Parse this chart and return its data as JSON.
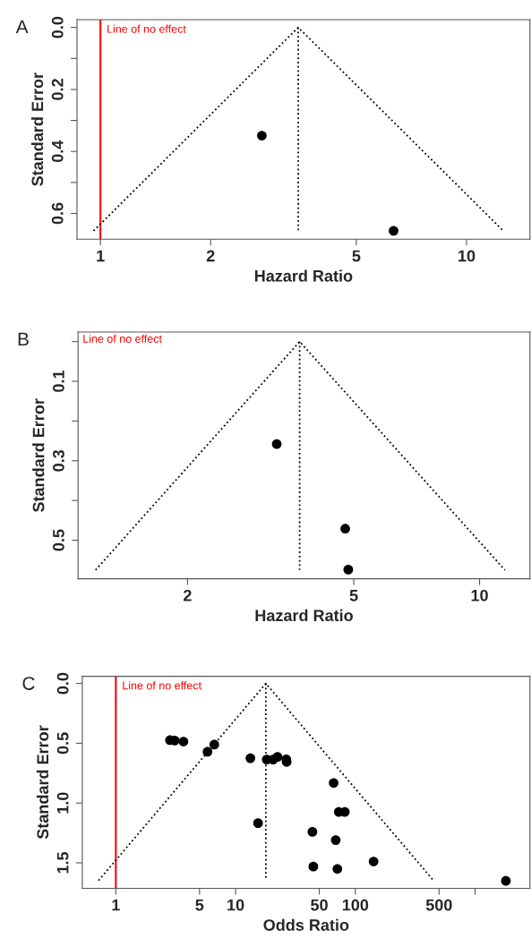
{
  "chart_data": [
    {
      "type": "scatter",
      "title": "A",
      "xlabel": "Hazard Ratio",
      "ylabel": "Standard Error",
      "log": "x",
      "xlim": [
        0.863,
        14.9
      ],
      "xticks": [
        1,
        2,
        5,
        10
      ],
      "ylim": [
        0.683,
        -0.025
      ],
      "yticks": [
        {
          "value": 0,
          "label": "0.0"
        },
        {
          "value": 0.1,
          "label": null
        },
        0.2,
        {
          "value": 0.3,
          "label": null
        },
        0.4,
        {
          "value": 0.5,
          "label": null
        },
        0.6
      ],
      "ref_lines": [
        {
          "axis": "x",
          "value": 1,
          "label": "Line of no effect",
          "color": "#ff0000"
        }
      ],
      "series": [
        {
          "type": "line",
          "x": [
            0.958,
            3.47,
            12.6
          ],
          "values": [
            0.656,
            0,
            0.656
          ],
          "color": "#000000",
          "line_style": "dotted"
        },
        {
          "type": "line",
          "x": [
            3.47,
            3.47
          ],
          "values": [
            0,
            0.656
          ],
          "color": "#000000",
          "line_style": "dotted"
        },
        {
          "type": "scatter",
          "x": [
            2.76,
            6.32
          ],
          "values": [
            0.349,
            0.656
          ],
          "color": "#000000",
          "marker": "circle"
        }
      ]
    },
    {
      "type": "scatter",
      "title": "B",
      "xlabel": "Hazard Ratio",
      "ylabel": "Standard Error",
      "log": "x",
      "xlim": [
        1.094,
        13.2
      ],
      "xticks": [
        2,
        5,
        10
      ],
      "ylim": [
        0.597,
        -0.024
      ],
      "yticks": [
        {
          "value": 0,
          "label": null
        },
        0.1,
        {
          "value": 0.2,
          "label": null
        },
        0.3,
        {
          "value": 0.4,
          "label": null
        },
        0.5
      ],
      "annotations": [
        "Line of no effect"
      ],
      "series": [
        {
          "type": "line",
          "x": [
            1.205,
            3.71,
            11.5
          ],
          "values": [
            0.575,
            0,
            0.575
          ],
          "color": "#000000",
          "line_style": "dotted"
        },
        {
          "type": "line",
          "x": [
            3.71,
            3.71
          ],
          "values": [
            0,
            0.575
          ],
          "color": "#000000",
          "line_style": "dotted"
        },
        {
          "type": "scatter",
          "x": [
            3.27,
            4.77,
            4.85
          ],
          "values": [
            0.258,
            0.471,
            0.574
          ],
          "color": "#000000",
          "marker": "circle"
        }
      ]
    },
    {
      "type": "scatter",
      "title": "C",
      "xlabel": "Odds Ratio",
      "ylabel": "Standard Error",
      "log": "x",
      "xlim": [
        0.525,
        2870
      ],
      "xticks": [
        1,
        5,
        10,
        50,
        100,
        500,
        {
          "value": 1000,
          "label": null
        }
      ],
      "ylim": [
        1.713,
        -0.06
      ],
      "yticks": [
        {
          "value": 0,
          "label": "0.0"
        },
        0.5,
        {
          "value": 1,
          "label": "1.0"
        },
        1.5
      ],
      "ref_lines": [
        {
          "axis": "x",
          "value": 1,
          "label": "Line of no effect",
          "color": "#ff0000"
        }
      ],
      "series": [
        {
          "type": "line",
          "x": [
            0.718,
            17.9,
            449
          ],
          "values": [
            1.648,
            0,
            1.648
          ],
          "color": "#000000",
          "line_style": "dotted"
        },
        {
          "type": "line",
          "x": [
            17.9,
            17.9
          ],
          "values": [
            0,
            1.648
          ],
          "color": "#000000",
          "line_style": "dotted"
        },
        {
          "type": "scatter",
          "x": [
            2.83,
            3.1,
            3.67,
            5.83,
            6.64,
            13.3,
            18.2,
            20.6,
            22.4,
            26.5,
            26.7,
            65.9,
            72.7,
            81.7,
            15.4,
            43.8,
            68.6,
            142,
            44.6,
            70.8,
            1807
          ],
          "values": [
            0.474,
            0.477,
            0.486,
            0.571,
            0.511,
            0.625,
            0.636,
            0.636,
            0.614,
            0.634,
            0.656,
            0.832,
            1.074,
            1.074,
            1.168,
            1.241,
            1.31,
            1.489,
            1.531,
            1.551,
            1.651
          ],
          "color": "#000000",
          "marker": "circle"
        }
      ]
    }
  ]
}
